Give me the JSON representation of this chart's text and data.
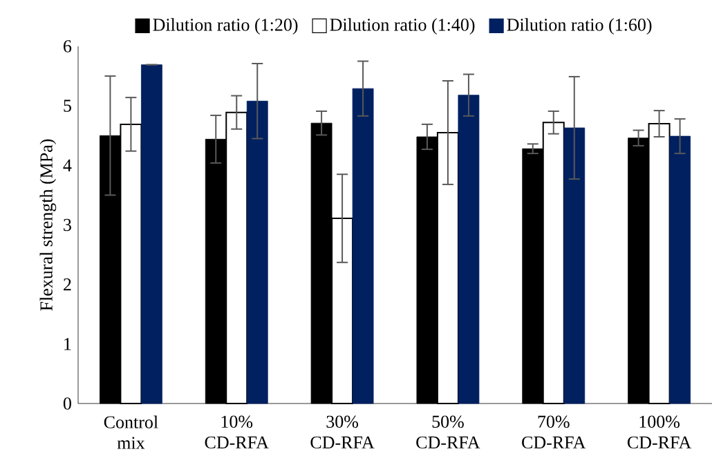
{
  "chart_data": {
    "type": "bar",
    "ylabel": "Flexural strength (MPa)",
    "categories": [
      "Control mix",
      "10% CD-RFA",
      "30% CD-RFA",
      "50% CD-RFA",
      "70% CD-RFA",
      "100% CD-RFA"
    ],
    "series": [
      {
        "name": "Dilution ratio (1:20)",
        "color": "#000000",
        "values": [
          4.5,
          4.44,
          4.71,
          4.48,
          4.28,
          4.46
        ],
        "errors": [
          1.0,
          0.4,
          0.2,
          0.21,
          0.08,
          0.13
        ]
      },
      {
        "name": "Dilution ratio (1:40)",
        "color": "#ffffff",
        "values": [
          4.69,
          4.89,
          3.11,
          4.55,
          4.72,
          4.7
        ],
        "errors": [
          0.45,
          0.28,
          0.74,
          0.87,
          0.19,
          0.22
        ]
      },
      {
        "name": "Dilution ratio (1:60)",
        "color": "#002060",
        "values": [
          5.69,
          5.08,
          5.29,
          5.18,
          4.63,
          4.49
        ],
        "errors": [
          0,
          0.63,
          0.46,
          0.35,
          0.86,
          0.29
        ]
      }
    ],
    "ylim": [
      0,
      6
    ],
    "yticks": [
      0,
      1,
      2,
      3,
      4,
      5,
      6
    ],
    "grid": false,
    "legend": "top"
  }
}
